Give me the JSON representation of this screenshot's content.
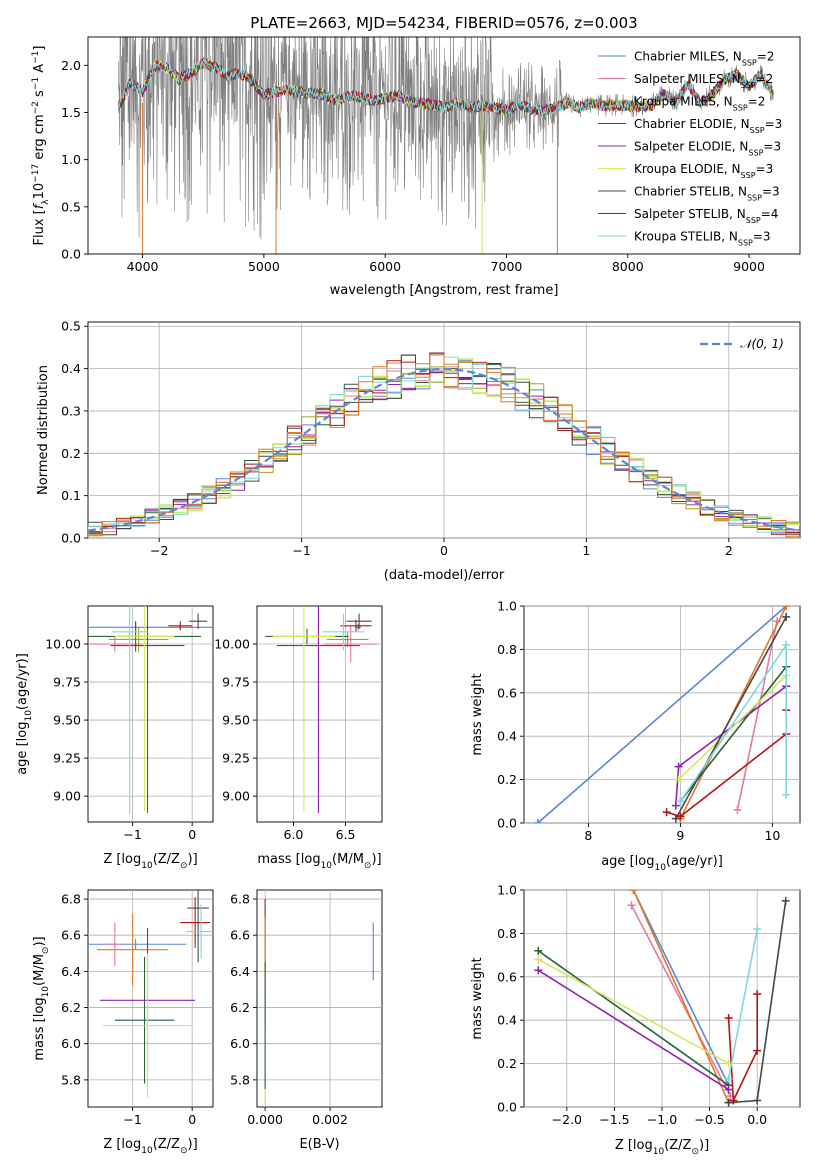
{
  "colors": {
    "Chabrier MILES": "#5b86d6",
    "Salpeter MILES": "#e8799a",
    "Kroupa MILES": "#a6a317",
    "Chabrier ELODIE": "#2a6438",
    "Salpeter ELODIE": "#9022b0",
    "Kroupa ELODIE": "#d6e860",
    "Chabrier STELIB": "#474747",
    "Salpeter STELIB": "#b41414",
    "Kroupa STELIB": "#7ed8df",
    "orange": "#e07828",
    "gray": "#777777",
    "lime": "#c8e86e"
  },
  "chart_data": [
    {
      "id": "spectrum",
      "type": "line",
      "title": "PLATE=2663, MJD=54234, FIBERID=0576, z=0.003",
      "xlabel": "wavelength [Angstrom, rest frame]",
      "ylabel": "Flux [f_λ 10^-17 erg cm^-2 s^-1 A^-1]",
      "xlim": [
        3550,
        9420
      ],
      "ylim": [
        0,
        2.3
      ],
      "xticks": [
        "4000",
        "5000",
        "6000",
        "7000",
        "8000",
        "9000"
      ],
      "yticks": [
        "0.0",
        "0.5",
        "1.0",
        "1.5",
        "2.0"
      ],
      "grid": false,
      "legend_position": "top-right",
      "legend": [
        {
          "name": "Chabrier MILES, N_SSP=2",
          "label": "Chabrier MILES, N",
          "n": "2"
        },
        {
          "name": "Salpeter MILES, N_SSP=2",
          "label": "Salpeter MILES, N",
          "n": "2"
        },
        {
          "name": "Kroupa MILES, N_SSP=2",
          "label": "Kroupa MILES, N",
          "n": "2"
        },
        {
          "name": "Chabrier ELODIE, N_SSP=3",
          "label": "Chabrier ELODIE, N",
          "n": "3"
        },
        {
          "name": "Salpeter ELODIE, N_SSP=3",
          "label": "Salpeter ELODIE, N",
          "n": "3"
        },
        {
          "name": "Kroupa ELODIE, N_SSP=3",
          "label": "Kroupa ELODIE, N",
          "n": "3"
        },
        {
          "name": "Chabrier STELIB, N_SSP=3",
          "label": "Chabrier STELIB, N",
          "n": "3"
        },
        {
          "name": "Salpeter STELIB, N_SSP=4",
          "label": "Salpeter STELIB, N",
          "n": "4"
        },
        {
          "name": "Kroupa STELIB, N_SSP=3",
          "label": "Kroupa STELIB, N",
          "n": "3"
        }
      ],
      "data_trend": {
        "x": [
          3800,
          3900,
          4000,
          4100,
          4200,
          4300,
          4400,
          4500,
          4600,
          4700,
          4800,
          4900,
          5000,
          5100,
          5200,
          5300,
          5400,
          5500,
          5600,
          5700,
          5800,
          5900,
          6000,
          6100,
          6200,
          6300,
          6400,
          6500,
          6600,
          6700,
          6800,
          6900,
          7000,
          7100,
          7200,
          7300,
          7400,
          7500,
          7600,
          7700,
          7800,
          7900,
          8000,
          8100,
          8200,
          8300,
          8400,
          8500,
          8600,
          8700,
          8800,
          8900,
          9000,
          9100,
          9200
        ],
        "y": [
          1.55,
          1.82,
          1.72,
          2.0,
          1.98,
          1.85,
          1.92,
          2.02,
          1.98,
          1.88,
          1.92,
          1.84,
          1.68,
          1.72,
          1.74,
          1.72,
          1.7,
          1.69,
          1.62,
          1.68,
          1.66,
          1.62,
          1.65,
          1.68,
          1.62,
          1.6,
          1.58,
          1.55,
          1.6,
          1.56,
          1.57,
          1.55,
          1.53,
          1.58,
          1.54,
          1.52,
          1.55,
          1.6,
          1.55,
          1.6,
          1.57,
          1.58,
          1.57,
          1.56,
          1.58,
          1.7,
          1.62,
          1.8,
          1.6,
          1.7,
          1.85,
          1.9,
          1.78,
          1.9,
          1.68
        ]
      }
    },
    {
      "id": "residuals",
      "type": "histogram",
      "xlabel": "(data-model)/error",
      "ylabel": "Normed distribution",
      "xlim": [
        -2.5,
        2.5
      ],
      "ylim": [
        0,
        0.51
      ],
      "xticks": [
        "−2",
        "−1",
        "0",
        "1",
        "2"
      ],
      "yticks": [
        "0.0",
        "0.1",
        "0.2",
        "0.3",
        "0.4",
        "0.5"
      ],
      "grid": true,
      "legend_position": "top-right",
      "legend": [
        {
          "name": "N(0,1)",
          "label": "𝒩(0, 1)"
        }
      ],
      "bin_edges_start": -2.5,
      "bin_width": 0.1
    },
    {
      "id": "age_vs_z",
      "type": "errorbar",
      "xlabel": "Z [log10(Z/Z⊙)]",
      "xlabel_parts": [
        "Z [log",
        "10",
        "(Z/Z",
        "⊙",
        ")]"
      ],
      "ylabel": "age [log10(age/yr)]",
      "ylabel_parts": [
        "age  [log",
        "10",
        "(age/yr)]"
      ],
      "xlim": [
        -1.75,
        0.35
      ],
      "ylim": [
        8.83,
        10.25
      ],
      "xticks": [
        "−1",
        "0"
      ],
      "yticks": [
        "9.00",
        "9.25",
        "9.50",
        "9.75",
        "10.00"
      ],
      "grid": true,
      "points": [
        {
          "series": "Chabrier MILES",
          "x": -0.95,
          "xerr": 1.6,
          "y": 10.11,
          "yerr": 0.03
        },
        {
          "series": "Salpeter MILES",
          "x": -1.3,
          "xerr": 0.45,
          "y": 10.0,
          "yerr": 0.05
        },
        {
          "series": "Kroupa MILES",
          "x": -0.9,
          "xerr": 0.5,
          "y": 10.03,
          "yerr": 0.08
        },
        {
          "series": "Chabrier ELODIE",
          "x": -0.95,
          "xerr": 1.1,
          "y": 10.05,
          "yerr": 0.1
        },
        {
          "series": "Salpeter ELODIE",
          "x": -0.75,
          "xerr": 0.62,
          "y": 9.99,
          "yerr": 1.1
        },
        {
          "series": "Kroupa ELODIE",
          "x": -0.8,
          "xerr": 0.5,
          "y": 10.05,
          "yerr": 1.15
        },
        {
          "series": "Chabrier STELIB",
          "x": 0.1,
          "xerr": 0.15,
          "y": 10.15,
          "yerr": 0.05
        },
        {
          "series": "Salpeter STELIB",
          "x": -0.2,
          "xerr": 0.2,
          "y": 10.12,
          "yerr": 0.03
        },
        {
          "series": "Kroupa STELIB",
          "x": -1.05,
          "xerr": 0.3,
          "y": 10.08,
          "yerr": 1.2
        }
      ]
    },
    {
      "id": "age_vs_mass",
      "type": "errorbar",
      "xlabel": "mass [log10(M/M⊙)]",
      "xlabel_parts": [
        "mass [log",
        "10",
        "(M/M",
        "⊙",
        ")]"
      ],
      "xlim": [
        5.65,
        6.85
      ],
      "ylim": [
        8.83,
        10.25
      ],
      "xticks": [
        "6.0",
        "6.5"
      ],
      "yticks": [
        "9.00",
        "9.25",
        "9.50",
        "9.75",
        "10.00"
      ],
      "grid": true,
      "points": [
        {
          "series": "Chabrier MILES",
          "x": 6.62,
          "xerr": 0.03,
          "y": 10.11,
          "yerr": 0.02
        },
        {
          "series": "Salpeter MILES",
          "x": 6.55,
          "xerr": 0.25,
          "y": 10.0,
          "yerr": 0.12
        },
        {
          "series": "Kroupa MILES",
          "x": 6.52,
          "xerr": 0.2,
          "y": 10.03,
          "yerr": 0.05
        },
        {
          "series": "Chabrier ELODIE",
          "x": 6.13,
          "xerr": 0.4,
          "y": 10.05,
          "yerr": 0.05
        },
        {
          "series": "Salpeter ELODIE",
          "x": 6.24,
          "xerr": 0.4,
          "y": 9.99,
          "yerr": 1.1
        },
        {
          "series": "Kroupa ELODIE",
          "x": 6.1,
          "xerr": 0.3,
          "y": 10.05,
          "yerr": 1.15
        },
        {
          "series": "Chabrier STELIB",
          "x": 6.63,
          "xerr": 0.12,
          "y": 10.15,
          "yerr": 0.05
        },
        {
          "series": "Salpeter STELIB",
          "x": 6.6,
          "xerr": 0.15,
          "y": 10.12,
          "yerr": 0.04
        },
        {
          "series": "Kroupa STELIB",
          "x": 6.48,
          "xerr": 0.2,
          "y": 10.08,
          "yerr": 0.12
        }
      ]
    },
    {
      "id": "weight_vs_age",
      "type": "line",
      "xlabel": "age [log10(age/yr)]",
      "xlabel_parts": [
        "age  [log",
        "10",
        "(age/yr)]"
      ],
      "ylabel": "mass weight",
      "xlim": [
        7.3,
        10.3
      ],
      "ylim": [
        0,
        1.0
      ],
      "xticks": [
        "8",
        "9",
        "10"
      ],
      "yticks": [
        "0.0",
        "0.2",
        "0.4",
        "0.6",
        "0.8",
        "1.0"
      ],
      "grid": true,
      "series": [
        {
          "name": "Chabrier MILES",
          "x": [
            7.45,
            10.15
          ],
          "y": [
            0.0,
            1.0
          ]
        },
        {
          "name": "Salpeter MILES",
          "x": [
            9.62,
            10.05
          ],
          "y": [
            0.06,
            0.93
          ]
        },
        {
          "name": "orange",
          "x": [
            9.0,
            10.15
          ],
          "y": [
            0.02,
            1.0
          ]
        },
        {
          "name": "Chabrier ELODIE",
          "x": [
            9.0,
            10.15
          ],
          "y": [
            0.1,
            0.72
          ]
        },
        {
          "name": "Salpeter ELODIE",
          "x": [
            8.95,
            8.98,
            10.15
          ],
          "y": [
            0.08,
            0.26,
            0.63
          ]
        },
        {
          "name": "Kroupa ELODIE",
          "x": [
            8.98,
            10.15
          ],
          "y": [
            0.2,
            0.68
          ]
        },
        {
          "name": "Chabrier STELIB",
          "x": [
            8.95,
            10.15
          ],
          "y": [
            0.02,
            0.95
          ]
        },
        {
          "name": "Salpeter STELIB",
          "x": [
            8.85,
            9.0,
            10.15
          ],
          "y": [
            0.05,
            0.03,
            0.41
          ]
        },
        {
          "name": "Salpeter STELIB",
          "x": [
            10.15
          ],
          "y": [
            0.52
          ]
        },
        {
          "name": "Kroupa STELIB",
          "x": [
            9.0,
            10.15,
            10.15
          ],
          "y": [
            0.1,
            0.82,
            0.13
          ]
        }
      ]
    },
    {
      "id": "mass_vs_z",
      "type": "errorbar",
      "xlabel": "Z [log10(Z/Z⊙)]",
      "xlabel_parts": [
        "Z [log",
        "10",
        "(Z/Z",
        "⊙",
        ")]"
      ],
      "ylabel": "mass [log10(M/M⊙)]",
      "ylabel_parts": [
        "mass [log",
        "10",
        "(M/M",
        "⊙",
        ")]"
      ],
      "xlim": [
        -1.75,
        0.35
      ],
      "ylim": [
        5.65,
        6.85
      ],
      "xticks": [
        "−1",
        "0"
      ],
      "yticks": [
        "5.8",
        "6.0",
        "6.2",
        "6.4",
        "6.6",
        "6.8"
      ],
      "grid": true,
      "points": [
        {
          "series": "Chabrier MILES",
          "x": -0.95,
          "xerr": 0.85,
          "y": 6.55,
          "yerr": 0.03
        },
        {
          "series": "Salpeter MILES",
          "x": -1.3,
          "xerr": 0.15,
          "y": 6.55,
          "yerr": 0.12
        },
        {
          "series": "orange",
          "x": -1.0,
          "xerr": 0.6,
          "y": 6.52,
          "yerr": 0.2
        },
        {
          "series": "Chabrier ELODIE",
          "x": -0.8,
          "xerr": 0.5,
          "y": 6.13,
          "yerr": 0.35
        },
        {
          "series": "Salpeter ELODIE",
          "x": -0.75,
          "xerr": 0.8,
          "y": 6.24,
          "yerr": 0.4
        },
        {
          "series": "lime",
          "x": -0.75,
          "xerr": 0.75,
          "y": 6.1,
          "yerr": 0.4
        },
        {
          "series": "Chabrier STELIB",
          "x": 0.1,
          "xerr": 0.18,
          "y": 6.75,
          "yerr": 0.3
        },
        {
          "series": "Salpeter STELIB",
          "x": 0.05,
          "xerr": 0.25,
          "y": 6.67,
          "yerr": 0.14
        },
        {
          "series": "Kroupa STELIB",
          "x": 0.15,
          "xerr": 0.25,
          "y": 6.62,
          "yerr": 0.15
        }
      ]
    },
    {
      "id": "mass_vs_ebv",
      "type": "errorbar",
      "xlabel": "E(B-V)",
      "xlim": [
        -0.00025,
        0.0036
      ],
      "ylim": [
        5.65,
        6.85
      ],
      "xticks": [
        "0.000",
        "0.002"
      ],
      "yticks": [
        "5.8",
        "6.0",
        "6.2",
        "6.4",
        "6.6",
        "6.8"
      ],
      "grid": true,
      "points": [
        {
          "series": "Salpeter STELIB",
          "x": 0.0,
          "y": 6.6,
          "yerr": 0.2
        },
        {
          "series": "orange",
          "x": 0.0,
          "y": 6.4,
          "yerr": 0.3
        },
        {
          "series": "lime",
          "x": 0.0,
          "y": 6.0,
          "yerr": 0.3
        },
        {
          "series": "Chabrier ELODIE",
          "x": 0.0,
          "y": 6.1,
          "yerr": 0.35
        },
        {
          "series": "Chabrier MILES",
          "x": 0.00333,
          "y": 6.51,
          "yerr": 0.16
        }
      ]
    },
    {
      "id": "weight_vs_z",
      "type": "line",
      "xlabel": "Z [log10(Z/Z⊙)]",
      "xlabel_parts": [
        "Z [log",
        "10",
        "(Z/Z",
        "⊙",
        ")]"
      ],
      "ylabel": "mass weight",
      "xlim": [
        -2.45,
        0.45
      ],
      "ylim": [
        0,
        1.0
      ],
      "xticks": [
        "−2.0",
        "−1.5",
        "−1.0",
        "−0.5",
        "0.0"
      ],
      "yticks": [
        "0.0",
        "0.2",
        "0.4",
        "0.6",
        "0.8",
        "1.0"
      ],
      "grid": true,
      "series": [
        {
          "name": "Chabrier MILES",
          "x": [
            -1.3,
            -0.3
          ],
          "y": [
            1.0,
            0.1
          ]
        },
        {
          "name": "Salpeter MILES",
          "x": [
            -1.32,
            -0.28
          ],
          "y": [
            0.93,
            0.05
          ]
        },
        {
          "name": "orange",
          "x": [
            -1.3,
            -0.3
          ],
          "y": [
            1.0,
            0.02
          ]
        },
        {
          "name": "Chabrier ELODIE",
          "x": [
            -2.3,
            -0.3
          ],
          "y": [
            0.72,
            0.1
          ]
        },
        {
          "name": "Salpeter ELODIE",
          "x": [
            -2.3,
            -0.3
          ],
          "y": [
            0.63,
            0.08
          ]
        },
        {
          "name": "Kroupa ELODIE",
          "x": [
            -2.3,
            -0.3
          ],
          "y": [
            0.68,
            0.2
          ]
        },
        {
          "name": "Chabrier STELIB",
          "x": [
            -0.3,
            0.0,
            0.3
          ],
          "y": [
            0.02,
            0.03,
            0.95
          ]
        },
        {
          "name": "Salpeter STELIB",
          "x": [
            -0.3,
            -0.25,
            0.0,
            0.0
          ],
          "y": [
            0.41,
            0.03,
            0.26,
            0.52
          ]
        },
        {
          "name": "Kroupa STELIB",
          "x": [
            -0.3,
            0.0
          ],
          "y": [
            0.13,
            0.82
          ]
        }
      ]
    }
  ]
}
